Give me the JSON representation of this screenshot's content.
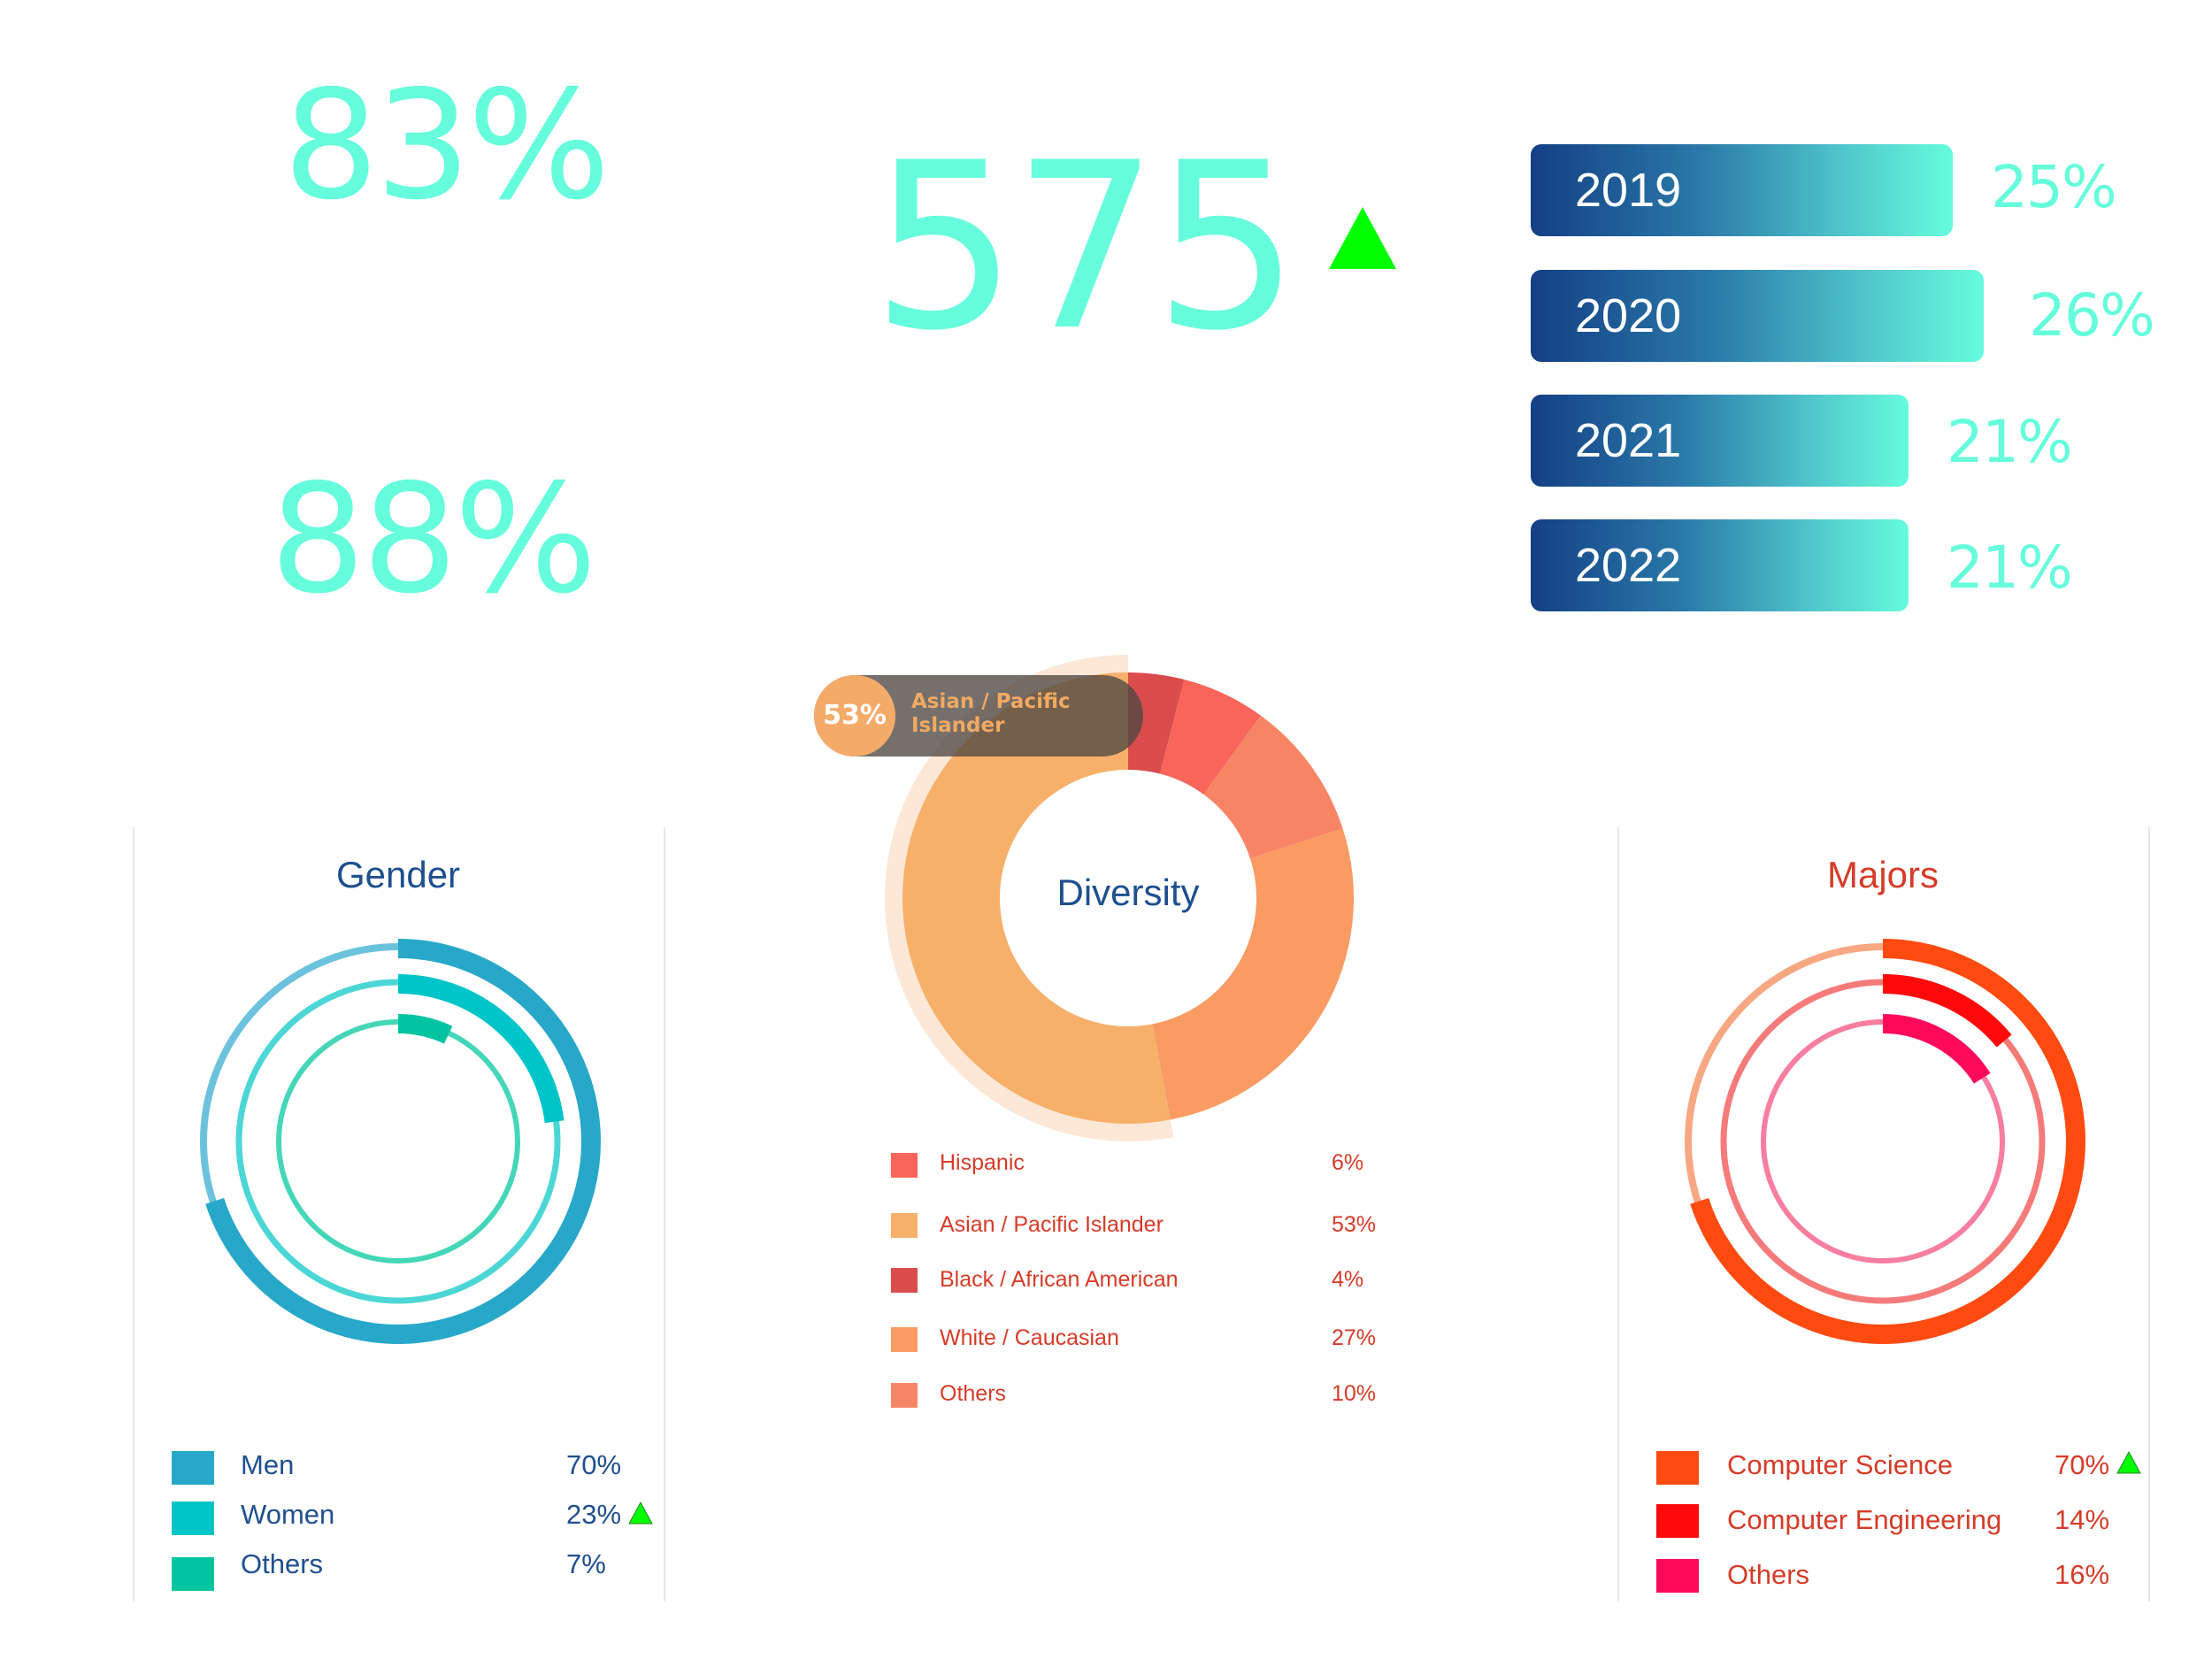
{
  "kpis": {
    "stat_top": "83%",
    "stat_bottom": "88%",
    "stat_center": "575"
  },
  "year_bars": [
    {
      "label": "2019",
      "value": "25%",
      "pct": 25
    },
    {
      "label": "2020",
      "value": "26%",
      "pct": 26
    },
    {
      "label": "2021",
      "value": "21%",
      "pct": 21
    },
    {
      "label": "2022",
      "value": "21%",
      "pct": 21
    }
  ],
  "gender": {
    "title": "Gender",
    "items": [
      {
        "label": "Men",
        "value": "70%"
      },
      {
        "label": "Women",
        "value": "23%"
      },
      {
        "label": "Others",
        "value": "7%"
      }
    ]
  },
  "diversity": {
    "title": "Diversity",
    "tooltip": {
      "value": "53%",
      "label_line1": "Asian / Pacific",
      "label_line2": "Islander"
    },
    "items": [
      {
        "label": "Hispanic",
        "value": "6%"
      },
      {
        "label": "Asian / Pacific Islander",
        "value": "53%"
      },
      {
        "label": "Black / African American",
        "value": "4%"
      },
      {
        "label": "White / Caucasian",
        "value": "27%"
      },
      {
        "label": "Others",
        "value": "10%"
      }
    ]
  },
  "majors": {
    "title": "Majors",
    "items": [
      {
        "label": "Computer Science",
        "value": "70%"
      },
      {
        "label": "Computer Engineering",
        "value": "14%"
      },
      {
        "label": "Others",
        "value": "16%"
      }
    ]
  },
  "colors": {
    "accent": "#66fddc",
    "up_arrow": "#00ff00",
    "bar_start": "#143f85",
    "bar_end": "#66fcdd",
    "gender_men": "#27a8c9",
    "gender_women": "#00c5c8",
    "gender_others": "#00c4a0",
    "div_hispanic": "#f9655a",
    "div_asian": "#f7b06a",
    "div_black": "#db4c4c",
    "div_white": "#f99b62",
    "div_others": "#f88466",
    "major_cs": "#ff4a10",
    "major_ce": "#ff0a0a",
    "major_others": "#ff0a5a",
    "title_blue": "#1e4f8f",
    "title_red": "#d63b28"
  },
  "chart_data": [
    {
      "type": "bar",
      "categories": [
        "2019",
        "2020",
        "2021",
        "2022"
      ],
      "values": [
        25,
        26,
        21,
        21
      ],
      "xlabel": "",
      "ylabel": ""
    },
    {
      "type": "pie",
      "title": "Gender",
      "categories": [
        "Men",
        "Women",
        "Others"
      ],
      "values": [
        70,
        23,
        7
      ]
    },
    {
      "type": "pie",
      "title": "Diversity",
      "categories": [
        "Hispanic",
        "Asian / Pacific Islander",
        "Black / African American",
        "White / Caucasian",
        "Others"
      ],
      "values": [
        6,
        53,
        4,
        27,
        10
      ]
    },
    {
      "type": "pie",
      "title": "Majors",
      "categories": [
        "Computer Science",
        "Computer Engineering",
        "Others"
      ],
      "values": [
        70,
        14,
        16
      ]
    }
  ]
}
